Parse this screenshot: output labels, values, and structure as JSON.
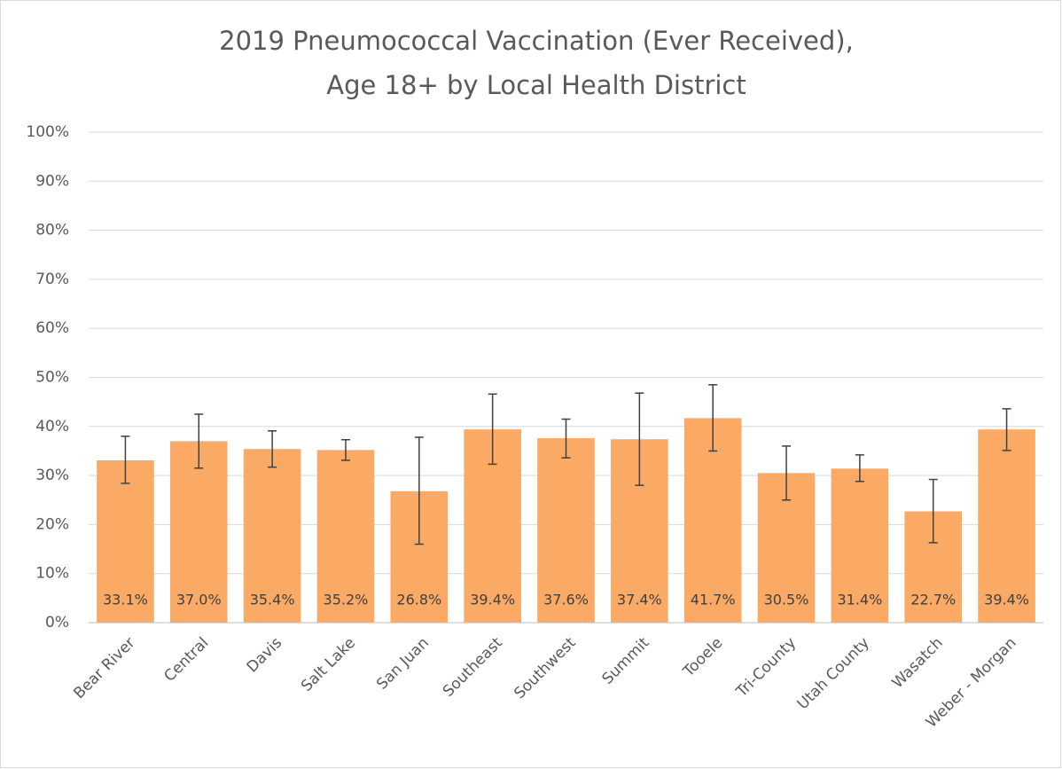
{
  "chart_data": {
    "type": "bar",
    "title": [
      "2019 Pneumococcal Vaccination (Ever Received),",
      "Age 18+ by Local Health District"
    ],
    "categories": [
      "Bear River",
      "Central",
      "Davis",
      "Salt Lake",
      "San Juan",
      "Southeast",
      "Southwest",
      "Summit",
      "Tooele",
      "Tri-County",
      "Utah County",
      "Wasatch",
      "Weber - Morgan"
    ],
    "values": [
      33.1,
      37.0,
      35.4,
      35.2,
      26.8,
      39.4,
      37.6,
      37.4,
      41.7,
      30.5,
      31.4,
      22.7,
      39.4
    ],
    "value_labels": [
      "33.1%",
      "37.0%",
      "35.4%",
      "35.2%",
      "26.8%",
      "39.4%",
      "37.6%",
      "37.4%",
      "41.7%",
      "30.5%",
      "31.4%",
      "22.7%",
      "39.4%"
    ],
    "ci_low": [
      28.4,
      31.5,
      31.7,
      33.1,
      16.0,
      32.3,
      33.6,
      28.0,
      35.0,
      25.0,
      28.8,
      16.3,
      35.1
    ],
    "ci_high": [
      38.0,
      42.5,
      39.1,
      37.3,
      37.8,
      46.6,
      41.5,
      46.8,
      48.5,
      36.0,
      34.2,
      29.2,
      43.6
    ],
    "color": "#fbaa66",
    "error_color": "#404040",
    "ylim": [
      0,
      100
    ],
    "yticks": [
      {
        "value": 0,
        "label": "0%"
      },
      {
        "value": 10,
        "label": "10%"
      },
      {
        "value": 20,
        "label": "20%"
      },
      {
        "value": 30,
        "label": "30%"
      },
      {
        "value": 40,
        "label": "40%"
      },
      {
        "value": 50,
        "label": "50%"
      },
      {
        "value": 60,
        "label": "60%"
      },
      {
        "value": 70,
        "label": "70%"
      },
      {
        "value": 80,
        "label": "80%"
      },
      {
        "value": 90,
        "label": "90%"
      },
      {
        "value": 100,
        "label": "100%"
      }
    ],
    "grid": true
  }
}
